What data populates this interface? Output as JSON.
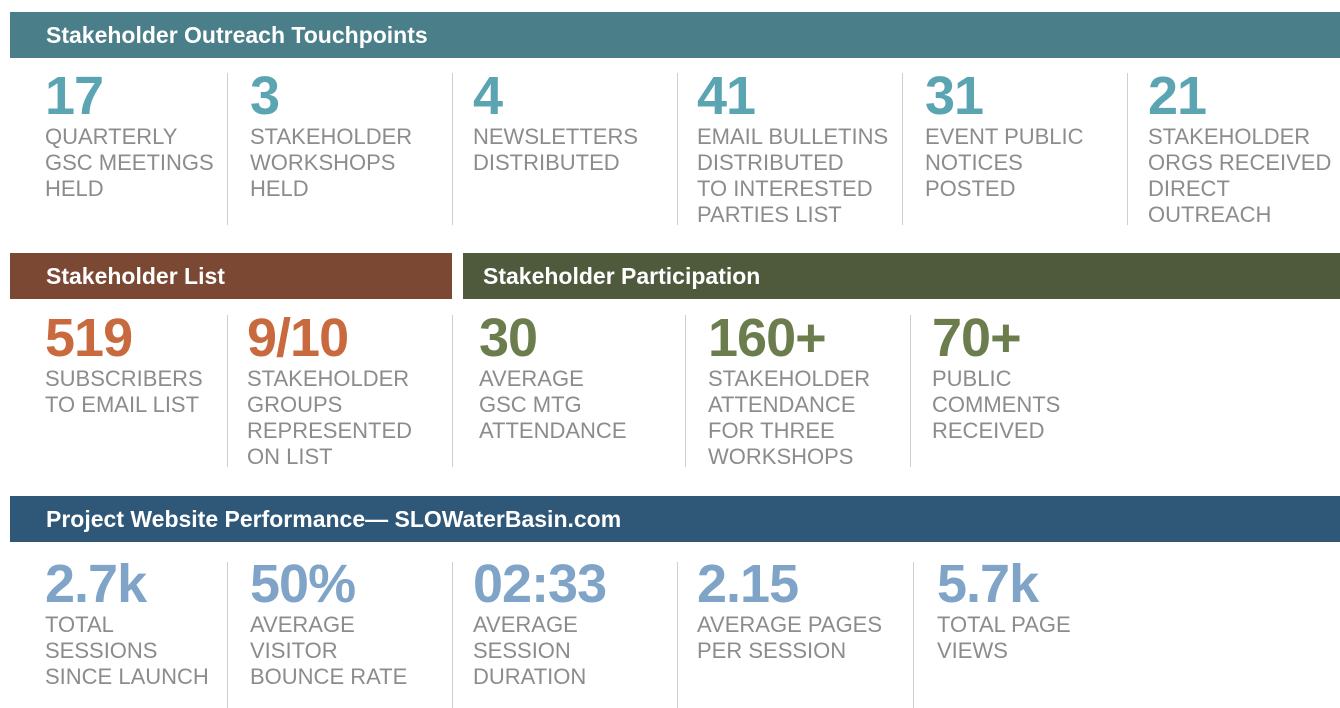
{
  "sections": [
    {
      "title": "Stakeholder Outreach Touchpoints",
      "items": [
        {
          "value": "17",
          "label": [
            "QUARTERLY",
            "GSC MEETINGS",
            "HELD"
          ]
        },
        {
          "value": "3",
          "label": [
            "STAKEHOLDER",
            "WORKSHOPS",
            "HELD"
          ]
        },
        {
          "value": "4",
          "label": [
            "NEWSLETTERS",
            "DISTRIBUTED"
          ]
        },
        {
          "value": "41",
          "label": [
            "EMAIL BULLETINS",
            "DISTRIBUTED",
            "TO INTERESTED",
            "PARTIES LIST"
          ]
        },
        {
          "value": "31",
          "label": [
            "EVENT PUBLIC",
            "NOTICES",
            "POSTED"
          ]
        },
        {
          "value": "21",
          "label": [
            "STAKEHOLDER",
            "ORGS RECEIVED",
            "DIRECT",
            "OUTREACH"
          ]
        }
      ]
    },
    {
      "title": "Stakeholder List",
      "items": [
        {
          "value": "519",
          "label": [
            "SUBSCRIBERS",
            "TO EMAIL LIST"
          ]
        },
        {
          "value": "9/10",
          "label": [
            "STAKEHOLDER",
            "GROUPS",
            "REPRESENTED",
            "ON LIST"
          ]
        }
      ]
    },
    {
      "title": "Stakeholder Participation",
      "items": [
        {
          "value": "30",
          "label": [
            "AVERAGE",
            "GSC MTG",
            "ATTENDANCE"
          ]
        },
        {
          "value": "160+",
          "label": [
            "STAKEHOLDER",
            "ATTENDANCE",
            "FOR THREE",
            "WORKSHOPS"
          ]
        },
        {
          "value": "70+",
          "label": [
            "PUBLIC",
            "COMMENTS",
            "RECEIVED"
          ]
        }
      ]
    },
    {
      "title": "Project Website Performance— SLOWaterBasin.com",
      "items": [
        {
          "value": "2.7k",
          "label": [
            "TOTAL",
            "SESSIONS",
            "SINCE LAUNCH"
          ]
        },
        {
          "value": "50%",
          "label": [
            "AVERAGE",
            "VISITOR",
            "BOUNCE RATE"
          ]
        },
        {
          "value": "02:33",
          "label": [
            "AVERAGE",
            "SESSION",
            "DURATION"
          ]
        },
        {
          "value": "2.15",
          "label": [
            "AVERAGE PAGES",
            "PER SESSION"
          ]
        },
        {
          "value": "5.7k",
          "label": [
            "TOTAL PAGE",
            "VIEWS"
          ]
        }
      ]
    }
  ]
}
